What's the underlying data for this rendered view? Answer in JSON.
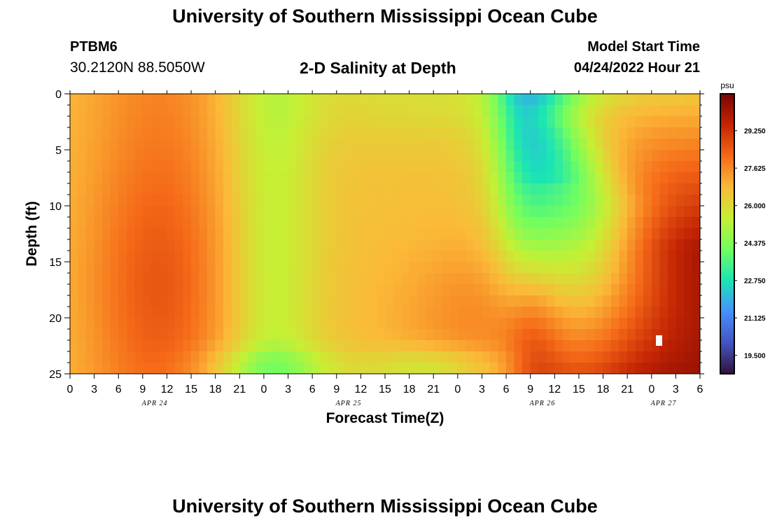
{
  "header": {
    "title": "University of Southern Mississippi Ocean Cube",
    "station_id": "PTBM6",
    "station_coords": "30.2120N  88.5050W",
    "chart_title": "2-D Salinity at Depth",
    "model_start_label": "Model Start Time",
    "model_start_value": "04/24/2022 Hour 21"
  },
  "footer": {
    "title": "University of Southern Mississippi Ocean Cube"
  },
  "chart_data": {
    "type": "heatmap",
    "title": "2-D Salinity at Depth",
    "xlabel": "Forecast Time(Z)",
    "ylabel": "Depth (ft)",
    "x_hours_range": [
      0,
      78
    ],
    "x_tick_labels": [
      "0",
      "3",
      "6",
      "9",
      "12",
      "15",
      "18",
      "21",
      "0",
      "3",
      "6",
      "9",
      "12",
      "15",
      "18",
      "21",
      "0",
      "3",
      "6",
      "9",
      "12",
      "15",
      "18",
      "21",
      "0",
      "3",
      "6"
    ],
    "date_labels": [
      {
        "label": "APR 24",
        "at_tick": 3.5
      },
      {
        "label": "APR 25",
        "at_tick": 11.5
      },
      {
        "label": "APR 26",
        "at_tick": 19.5
      },
      {
        "label": "APR 27",
        "at_tick": 24.5
      }
    ],
    "ylim": [
      0,
      25
    ],
    "y_ticks": [
      0,
      5,
      10,
      15,
      20,
      25
    ],
    "colorbar": {
      "unit": "psu",
      "range": [
        18.7,
        30.85
      ],
      "ticks": [
        "29.250",
        "27.625",
        "26.000",
        "24.375",
        "22.750",
        "21.125",
        "19.500"
      ],
      "tick_values": [
        29.25,
        27.625,
        26.0,
        24.375,
        22.75,
        21.125,
        19.5
      ],
      "colors": [
        "#30123b",
        "#4454c4",
        "#4690fe",
        "#1ae4b6",
        "#71fe5f",
        "#c7ef34",
        "#fbb938",
        "#f56918",
        "#c42503",
        "#7a0403"
      ]
    }
  }
}
